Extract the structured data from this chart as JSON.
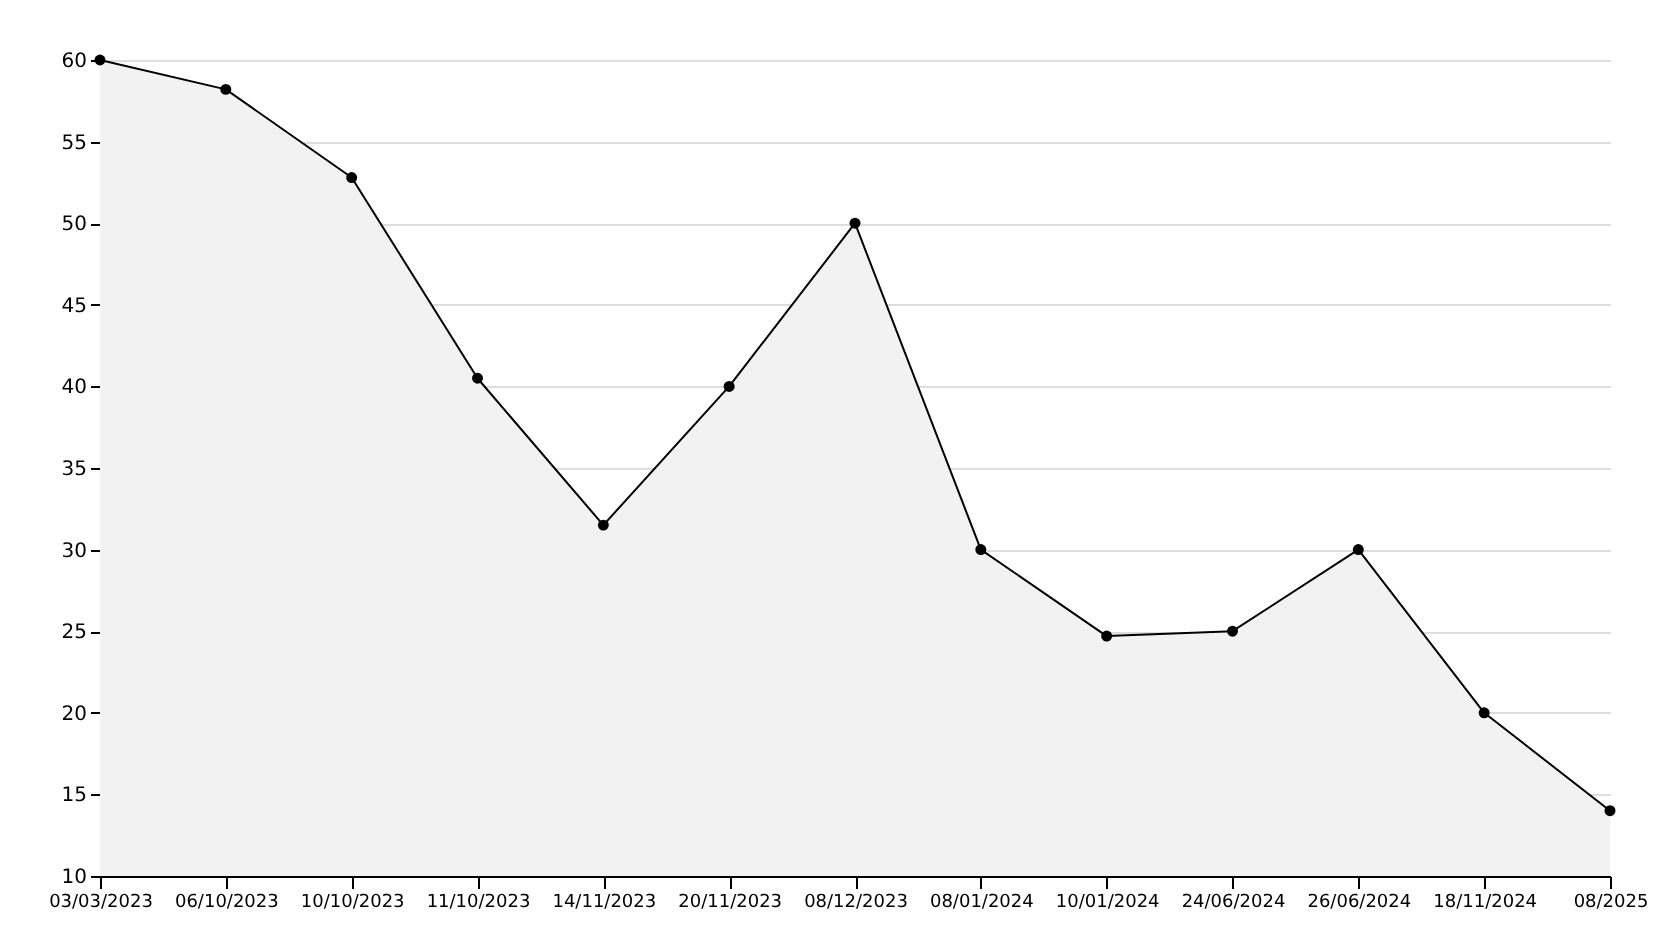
{
  "chart_data": {
    "type": "area",
    "categories": [
      "03/03/2023",
      "06/10/2023",
      "10/10/2023",
      "11/10/2023",
      "14/11/2023",
      "20/11/2023",
      "08/12/2023",
      "08/01/2024",
      "10/01/2024",
      "24/06/2024",
      "26/06/2024",
      "18/11/2024",
      "08/2025"
    ],
    "series": [
      {
        "color": "#000000",
        "values": [
          60,
          58.2,
          52.8,
          40.5,
          31.5,
          40,
          50,
          30,
          24.7,
          25,
          30,
          20,
          14
        ]
      }
    ],
    "ylim": [
      10,
      60
    ],
    "yticks": [
      10,
      15,
      20,
      25,
      30,
      35,
      40,
      45,
      50,
      55,
      60
    ],
    "grid": "y",
    "marker": "circle",
    "line_style": "solid"
  }
}
